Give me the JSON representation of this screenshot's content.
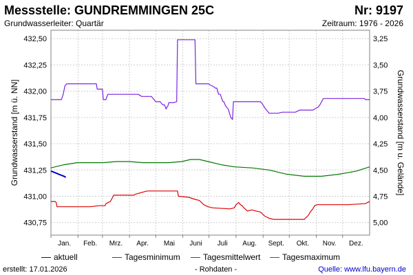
{
  "header": {
    "title": "Messstelle: GUNDREMMINGEN 25C",
    "nr": "Nr: 9197",
    "aquifer": "Grundwasserleiter: Quartär",
    "period": "Zeitraum: 1976 - 2026"
  },
  "footer": {
    "created": "erstellt:  17.01.2026",
    "raw": "- Rohdaten -",
    "source_label": "Quelle:",
    "source_url": "www.lfu.bayern.de"
  },
  "colors": {
    "aktuell": "#0000cc",
    "min": "#dd0000",
    "mean": "#007700",
    "max": "#7a22dd",
    "grid": "#cfcfcf",
    "frame": "#808080"
  },
  "chart_data": {
    "type": "line",
    "xlabel": "",
    "ylabel": "Grundwasserstand [m ü. NN]",
    "ylabel_right": "Grundwasserstand [m u. Gelände]",
    "ylim": [
      430.63,
      432.58
    ],
    "yticks": [
      "432,50",
      "432,25",
      "432,00",
      "431,75",
      "431,50",
      "431,25",
      "431,00",
      "430,75"
    ],
    "ytick_values": [
      432.5,
      432.25,
      432.0,
      431.75,
      431.5,
      431.25,
      431.0,
      430.75
    ],
    "yticks_right": [
      "3,25",
      "3,50",
      "3,75",
      "4,00",
      "4,25",
      "4,50",
      "4,75",
      "5,00"
    ],
    "xlim": [
      0,
      365
    ],
    "xticks": [
      "Jan.",
      "Feb.",
      "Mrz.",
      "Apr.",
      "Mai",
      "Juni",
      "Juli",
      "Aug.",
      "Sept.",
      "Okt.",
      "Nov.",
      "Dez."
    ],
    "grid": true,
    "legend_position": "bottom",
    "series": [
      {
        "name": "aktuell",
        "color": "#0000cc",
        "x": [
          0,
          3,
          6,
          9,
          12,
          15,
          17
        ],
        "y": [
          431.24,
          431.23,
          431.22,
          431.21,
          431.2,
          431.19,
          431.18
        ]
      },
      {
        "name": "Tagesminimum",
        "color": "#dd0000",
        "x": [
          0,
          5,
          6,
          7,
          9,
          45,
          55,
          62,
          63,
          68,
          70,
          72,
          95,
          97,
          110,
          127,
          145,
          146,
          158,
          165,
          170,
          175,
          180,
          185,
          205,
          210,
          212,
          215,
          217,
          219,
          221,
          225,
          230,
          235,
          240,
          245,
          250,
          255,
          258,
          262,
          265,
          290,
          295,
          297,
          300,
          302,
          305,
          330,
          340,
          360,
          365
        ],
        "y": [
          430.95,
          430.95,
          430.94,
          430.9,
          430.9,
          430.9,
          430.91,
          430.91,
          430.93,
          430.95,
          430.98,
          431.01,
          431.01,
          431.02,
          431.05,
          431.05,
          431.05,
          431.0,
          430.99,
          430.97,
          430.96,
          430.92,
          430.9,
          430.89,
          430.88,
          430.89,
          430.92,
          430.94,
          430.92,
          430.91,
          430.89,
          430.86,
          430.87,
          430.86,
          430.85,
          430.81,
          430.79,
          430.78,
          430.78,
          430.78,
          430.78,
          430.78,
          430.82,
          430.85,
          430.88,
          430.91,
          430.92,
          430.92,
          430.92,
          430.93,
          430.95
        ]
      },
      {
        "name": "Tagesmittelwert",
        "color": "#007700",
        "x": [
          0,
          15,
          30,
          45,
          60,
          75,
          90,
          105,
          120,
          135,
          150,
          160,
          170,
          180,
          195,
          210,
          230,
          250,
          270,
          290,
          310,
          330,
          350,
          365
        ],
        "y": [
          431.27,
          431.3,
          431.32,
          431.32,
          431.32,
          431.33,
          431.33,
          431.32,
          431.32,
          431.32,
          431.33,
          431.35,
          431.35,
          431.33,
          431.3,
          431.28,
          431.27,
          431.25,
          431.21,
          431.19,
          431.19,
          431.21,
          431.24,
          431.28
        ]
      },
      {
        "name": "Tagesmaximum",
        "color": "#7a22dd",
        "x": [
          0,
          12,
          14,
          16,
          18,
          45,
          46,
          52,
          53,
          55,
          59,
          60,
          63,
          65,
          90,
          91,
          100,
          104,
          115,
          117,
          120,
          125,
          128,
          130,
          131,
          132,
          133,
          134,
          135,
          140,
          144,
          145,
          147,
          150,
          160,
          165,
          166,
          175,
          180,
          187,
          188,
          190,
          192,
          194,
          196,
          197,
          198,
          200,
          203,
          206,
          208,
          209,
          220,
          240,
          242,
          245,
          250,
          260,
          265,
          270,
          280,
          285,
          290,
          300,
          306,
          308,
          312,
          330,
          350,
          359,
          360,
          365
        ],
        "y": [
          431.92,
          431.92,
          431.97,
          432.05,
          432.07,
          432.07,
          432.07,
          432.07,
          432.02,
          432.02,
          432.02,
          431.92,
          431.92,
          431.97,
          431.97,
          431.97,
          431.97,
          431.95,
          431.95,
          431.93,
          431.9,
          431.9,
          431.87,
          431.87,
          431.85,
          431.83,
          431.85,
          431.86,
          431.89,
          431.89,
          431.9,
          432.49,
          432.49,
          432.49,
          432.49,
          432.49,
          432.07,
          432.07,
          432.07,
          432.04,
          432.03,
          432.03,
          431.97,
          431.97,
          431.92,
          431.9,
          431.9,
          431.86,
          431.83,
          431.75,
          431.73,
          431.9,
          431.9,
          431.9,
          431.88,
          431.84,
          431.79,
          431.79,
          431.8,
          431.8,
          431.8,
          431.82,
          431.82,
          431.82,
          431.85,
          431.87,
          431.93,
          431.93,
          431.93,
          431.93,
          431.92,
          431.92
        ]
      }
    ]
  }
}
